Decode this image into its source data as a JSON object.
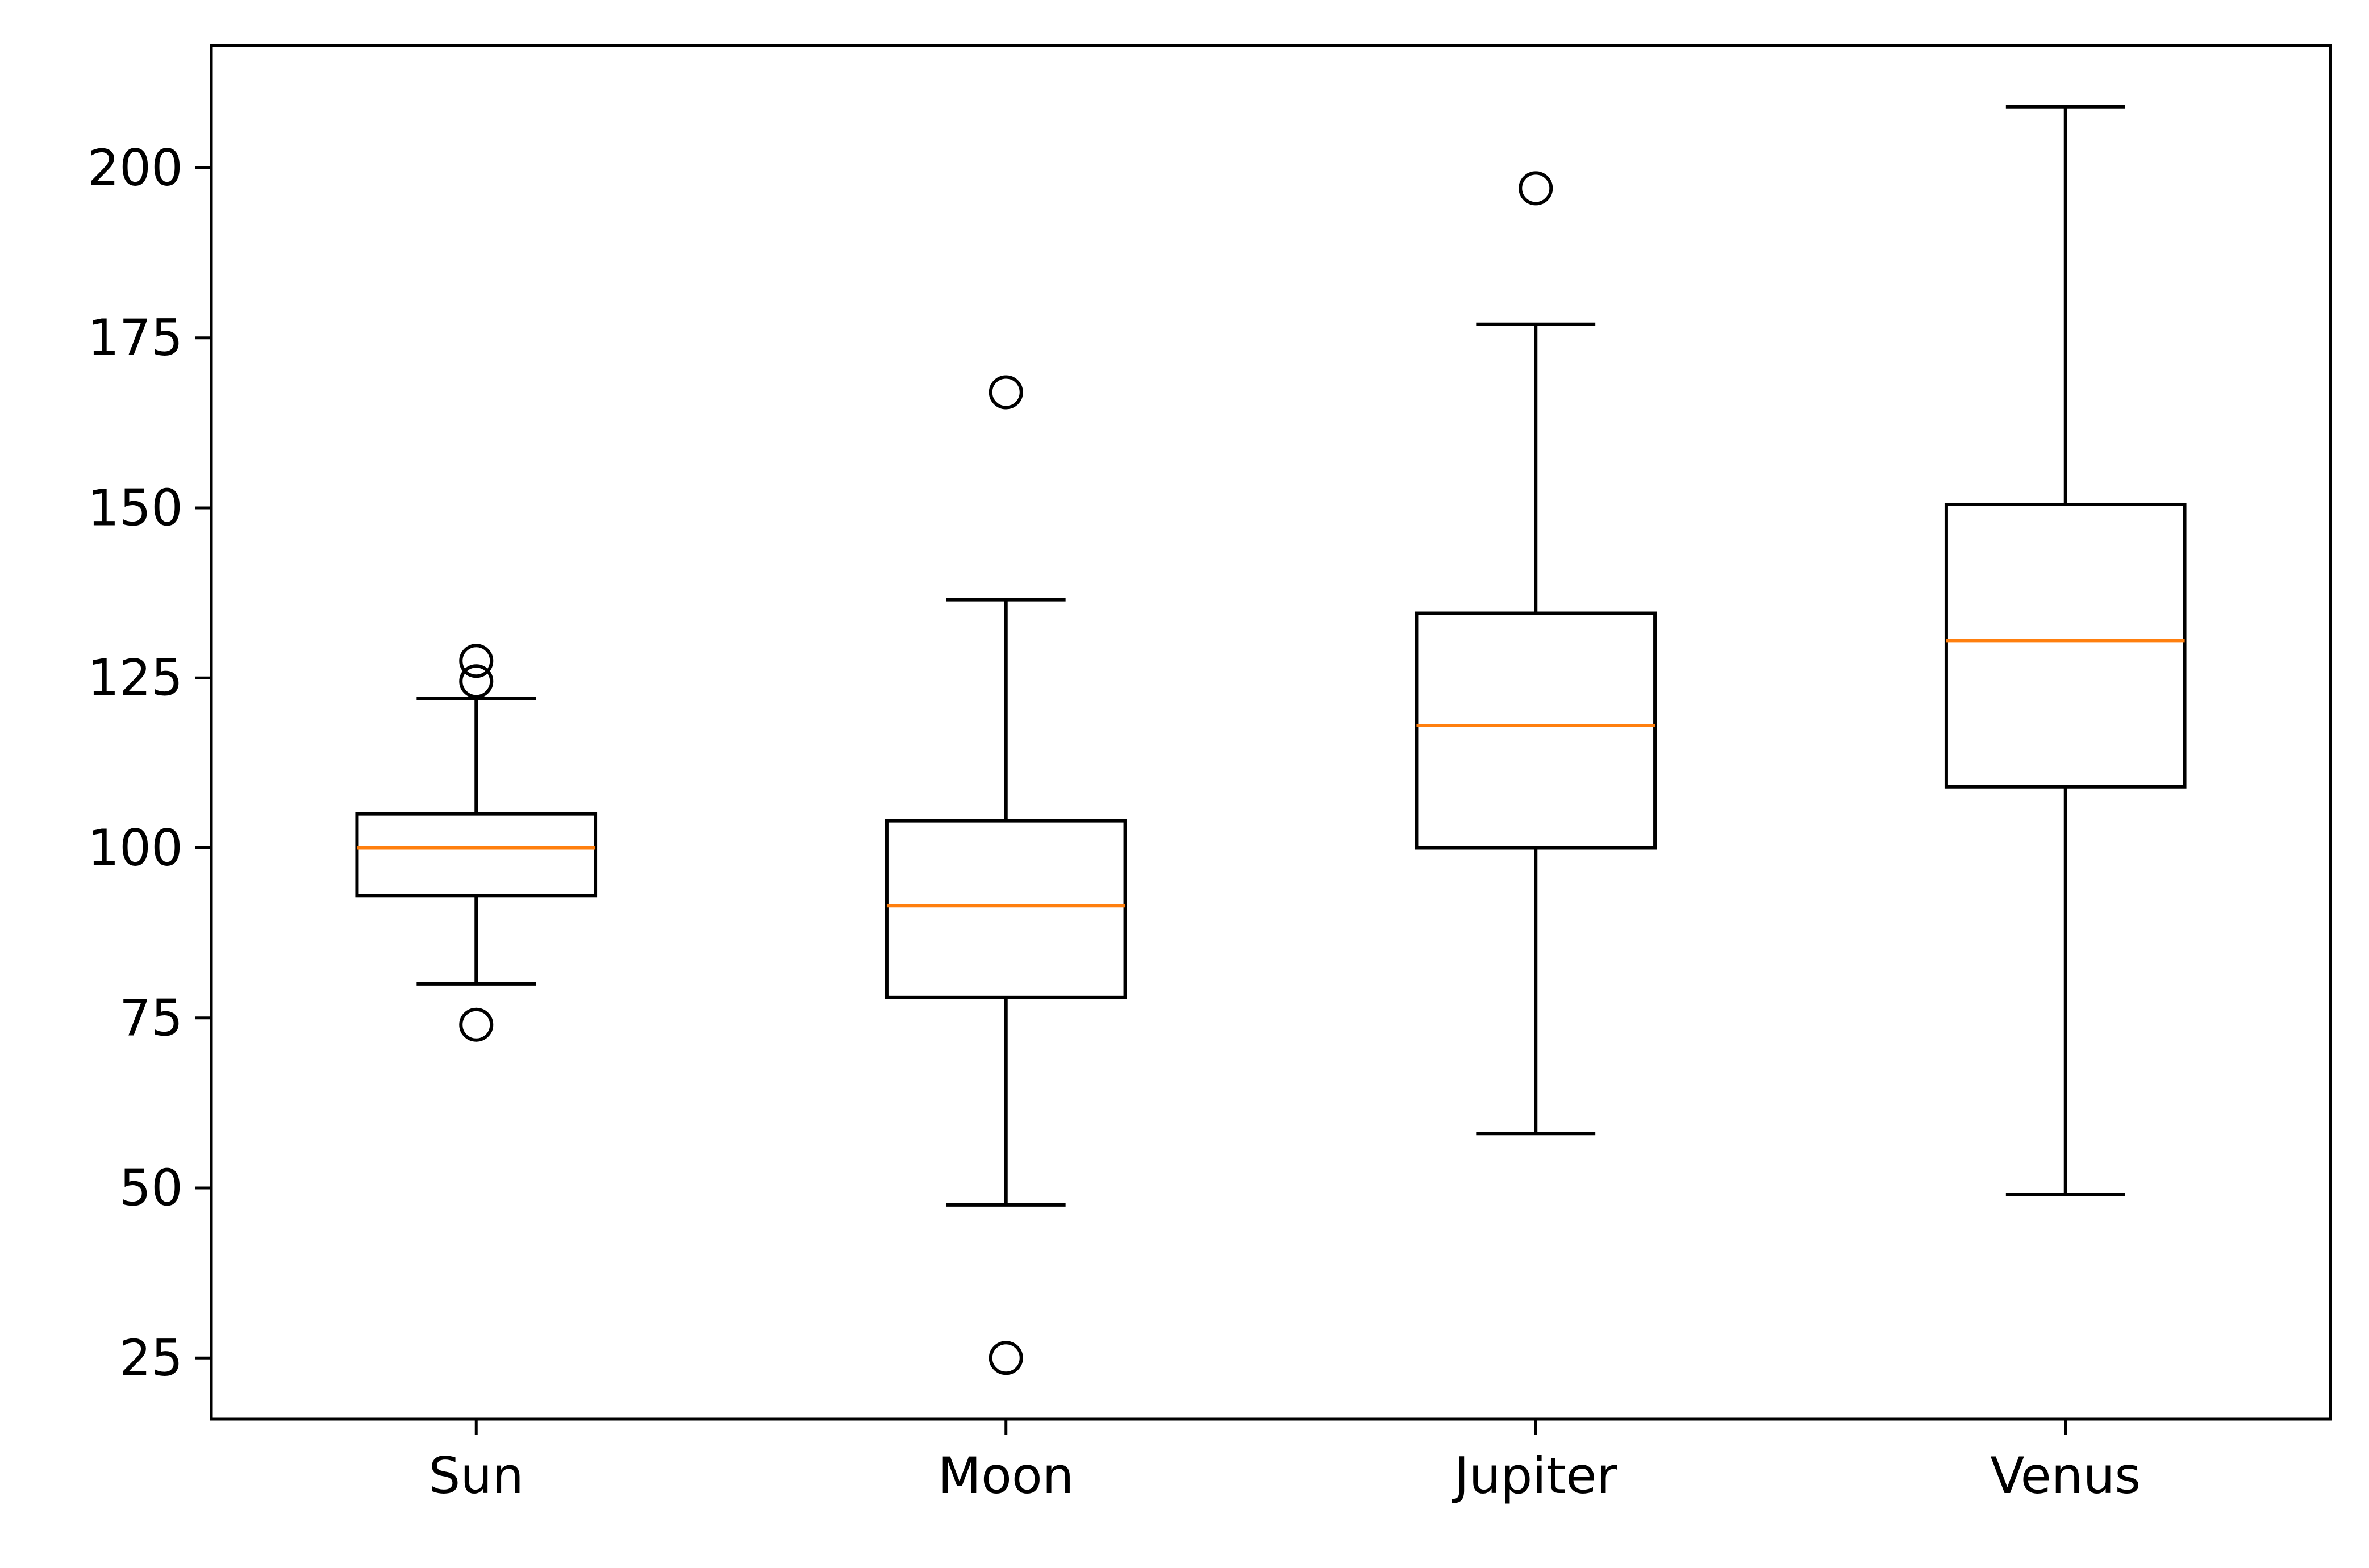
{
  "chart_data": {
    "type": "boxplot",
    "categories": [
      "Sun",
      "Moon",
      "Jupiter",
      "Venus"
    ],
    "boxes": [
      {
        "name": "Sun",
        "whisker_low": 80,
        "q1": 93,
        "median": 100,
        "q3": 105,
        "whisker_high": 122,
        "outliers": [
          74,
          124.5,
          127.5
        ]
      },
      {
        "name": "Moon",
        "whisker_low": 47.5,
        "q1": 78,
        "median": 91.5,
        "q3": 104,
        "whisker_high": 136.5,
        "outliers": [
          167,
          25
        ]
      },
      {
        "name": "Jupiter",
        "whisker_low": 58,
        "q1": 100,
        "median": 118,
        "q3": 134.5,
        "whisker_high": 177,
        "outliers": [
          197
        ]
      },
      {
        "name": "Venus",
        "whisker_low": 49,
        "q1": 109,
        "median": 130.5,
        "q3": 150.5,
        "whisker_high": 209,
        "outliers": []
      }
    ],
    "yticks": [
      25,
      50,
      75,
      100,
      125,
      150,
      175,
      200
    ],
    "ylim": [
      16,
      218
    ],
    "grid": false,
    "colors": {
      "box": "#000000",
      "median": "#ff7f0e",
      "background": "#ffffff"
    }
  }
}
